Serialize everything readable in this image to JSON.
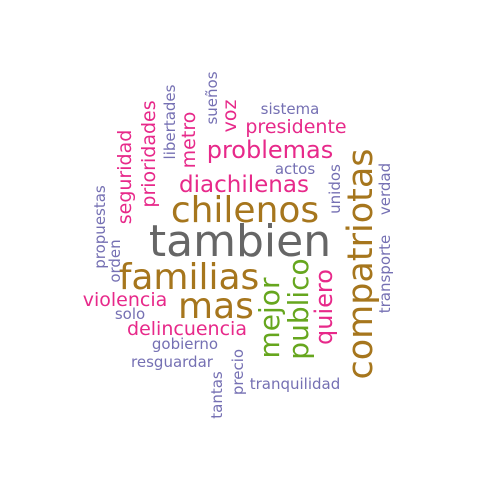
{
  "word_cloud": {
    "colors": {
      "grey": "#666666",
      "gold": "#a6761d",
      "pink": "#e7298a",
      "green": "#66a61e",
      "purple": "#7570b3"
    },
    "words": {
      "tambien": "tambien",
      "compatriotas": "compatriotas",
      "familias": "familias",
      "chilenos": "chilenos",
      "mas": "mas",
      "mejor": "mejor",
      "publico": "publico",
      "problemas": "problemas",
      "diachilenas": "diachilenas",
      "presidente": "presidente",
      "quiero": "quiero",
      "delincuencia": "delincuencia",
      "violencia": "violencia",
      "seguridad": "seguridad",
      "prioridades": "prioridades",
      "metro": "metro",
      "voz": "voz",
      "libertades": "libertades",
      "suenos": "sueños",
      "sistema": "sistema",
      "actos": "actos",
      "unidos": "unidos",
      "verdad": "verdad",
      "transporte": "transporte",
      "propuestas": "propuestas",
      "orden": "orden",
      "solo": "solo",
      "gobierno": "gobierno",
      "resguardar": "resguardar",
      "precio": "precio",
      "tantas": "tantas",
      "tranquilidad": "tranquilidad"
    }
  }
}
